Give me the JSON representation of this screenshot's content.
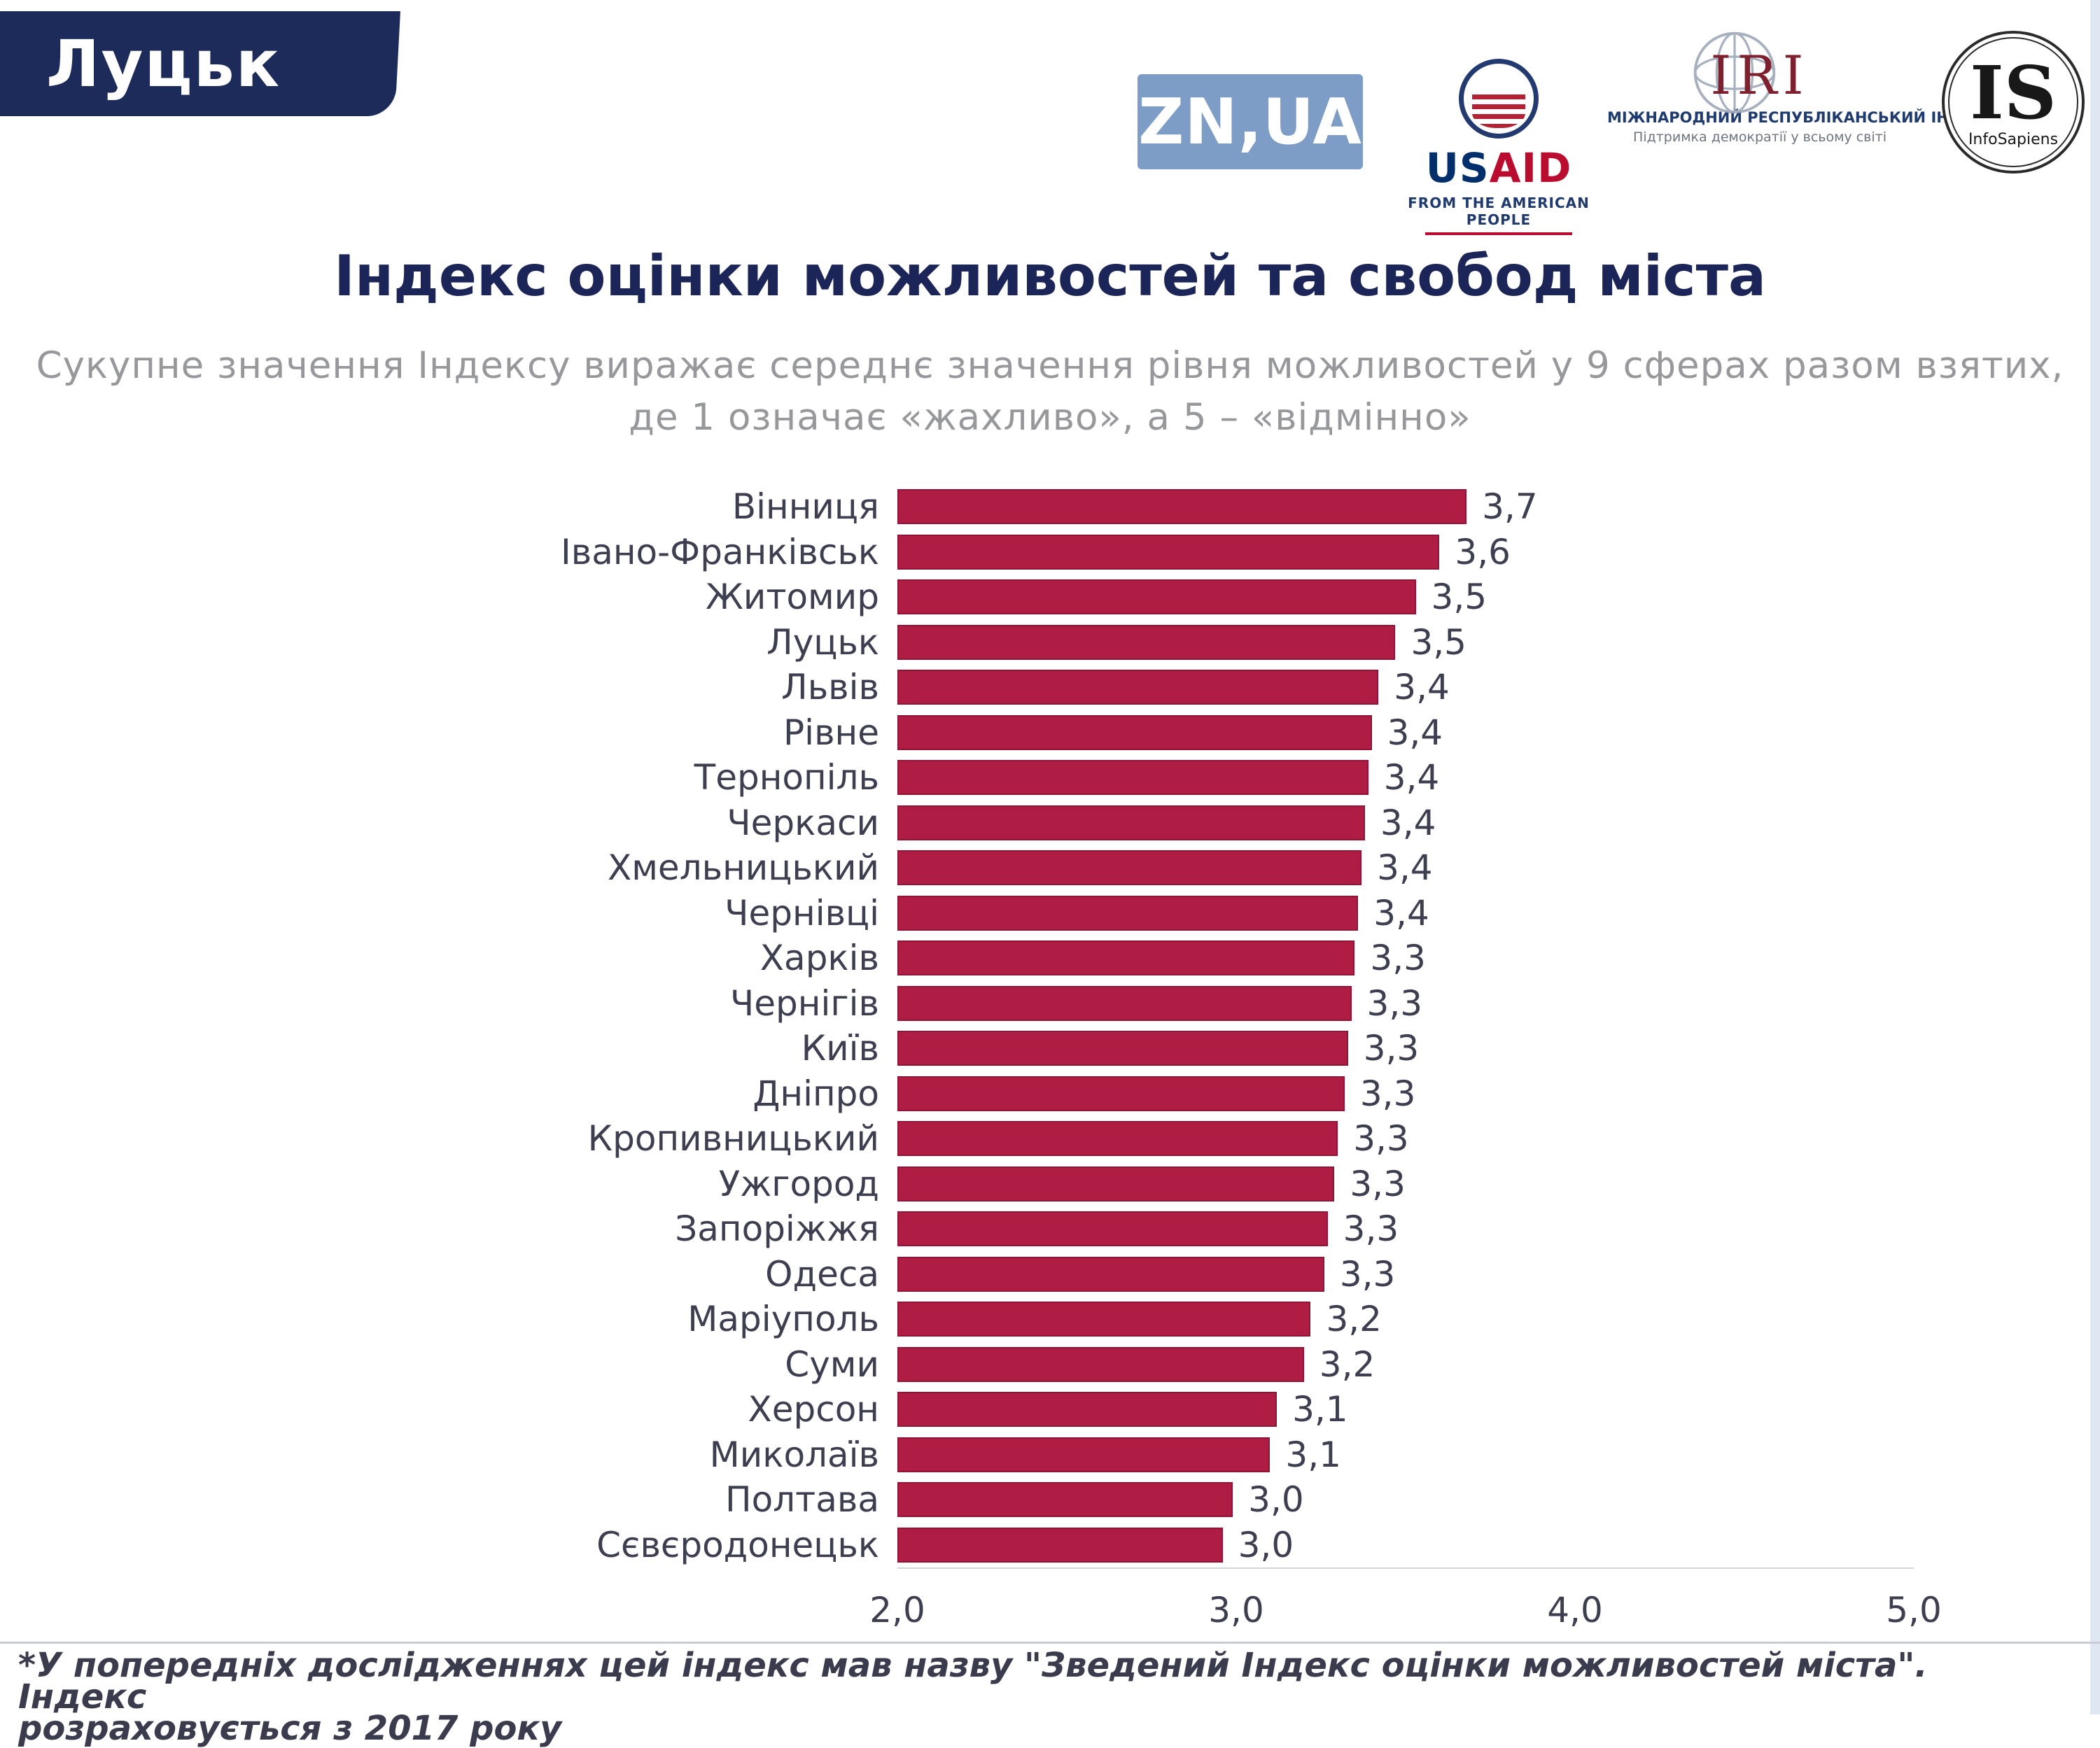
{
  "page": {
    "city_badge": "Луцьк",
    "title": "Індекс оцінки можливостей та свобод міста",
    "subtitle_line1": "Сукупне значення Індексу виражає середнє значення рівня можливостей у 9 сферах разом взятих,",
    "subtitle_line2": "де 1 означає «жахливо», а 5 – «відмінно»",
    "footnote_line1": "*У попередніх дослідженнях цей індекс мав назву \"Зведений Індекс оцінки можливостей міста\". Індекс",
    "footnote_line2": "розраховується з 2017 року"
  },
  "logos": {
    "znua": "ZN,UA",
    "usaid": {
      "part1": "US",
      "part2": "AID",
      "tagline": "FROM THE AMERICAN PEOPLE"
    },
    "iri": {
      "abbr": "IRI",
      "line1": "МІЖНАРОДНИЙ РЕСПУБЛІКАНСЬКИЙ ІНСТИТУТ",
      "line2": "Підтримка демократії у всьому світі"
    },
    "infosapiens": {
      "abbr": "IS",
      "name": "InfoSapiens"
    }
  },
  "chart_data": {
    "type": "bar",
    "orientation": "horizontal",
    "title": "Індекс оцінки можливостей та свобод міста",
    "subtitle": "Сукупне значення Індексу виражає середнє значення рівня можливостей у 9 сферах разом взятих, де 1 означає «жахливо», а 5 – «відмінно»",
    "categories": [
      "Вінниця",
      "Івано-Франківськ",
      "Житомир",
      "Луцьк",
      "Львів",
      "Рівне",
      "Тернопіль",
      "Черкаси",
      "Хмельницький",
      "Чернівці",
      "Харків",
      "Чернігів",
      "Київ",
      "Дніпро",
      "Кропивницький",
      "Ужгород",
      "Запоріжжя",
      "Одеса",
      "Маріуполь",
      "Суми",
      "Херсон",
      "Миколаїв",
      "Полтава",
      "Сєвєродонецьк"
    ],
    "values": [
      3.7,
      3.6,
      3.5,
      3.5,
      3.4,
      3.4,
      3.4,
      3.4,
      3.4,
      3.4,
      3.3,
      3.3,
      3.3,
      3.3,
      3.3,
      3.3,
      3.3,
      3.3,
      3.2,
      3.2,
      3.1,
      3.1,
      3.0,
      3.0
    ],
    "values_precise": [
      3.68,
      3.6,
      3.53,
      3.47,
      3.42,
      3.4,
      3.39,
      3.38,
      3.37,
      3.36,
      3.35,
      3.34,
      3.33,
      3.32,
      3.3,
      3.29,
      3.27,
      3.26,
      3.22,
      3.2,
      3.12,
      3.1,
      2.99,
      2.96
    ],
    "value_labels": [
      "3,7",
      "3,6",
      "3,5",
      "3,5",
      "3,4",
      "3,4",
      "3,4",
      "3,4",
      "3,4",
      "3,4",
      "3,3",
      "3,3",
      "3,3",
      "3,3",
      "3,3",
      "3,3",
      "3,3",
      "3,3",
      "3,2",
      "3,2",
      "3,1",
      "3,1",
      "3,0",
      "3,0"
    ],
    "x_ticks": [
      "2,0",
      "3,0",
      "4,0",
      "5,0"
    ],
    "xlim": [
      2.0,
      5.0
    ],
    "grid": false,
    "legend": false,
    "bar_color": "#b01d44",
    "bar_border_color": "#8e1536"
  }
}
